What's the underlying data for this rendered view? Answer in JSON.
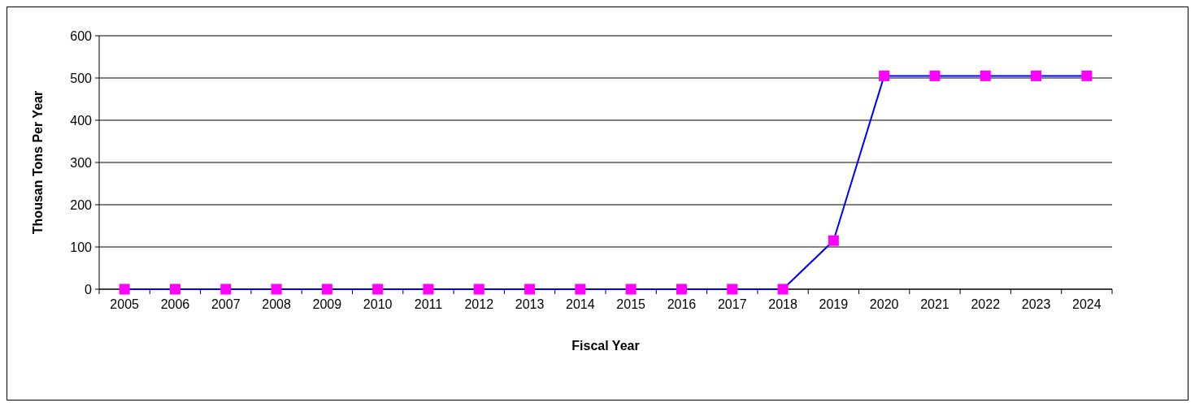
{
  "chart_data": {
    "type": "line",
    "xlabel": "Fiscal Year",
    "ylabel": "Thousan Tons Per Year",
    "categories": [
      "2005",
      "2006",
      "2007",
      "2008",
      "2009",
      "2010",
      "2011",
      "2012",
      "2013",
      "2014",
      "2015",
      "2016",
      "2017",
      "2018",
      "2019",
      "2020",
      "2021",
      "2022",
      "2023",
      "2024"
    ],
    "series": [
      {
        "color": "#0000ff",
        "colors": [
          "#ff00ff",
          "#ff00ff",
          "#ff00ff",
          "#ff00ff",
          "#ff00ff",
          "#ff00ff",
          "#ff00ff",
          "#ff00ff",
          "#ff00ff",
          "#ff00ff",
          "#ff00ff",
          "#ff00ff",
          "#ff00ff",
          "#ff00ff",
          "#ff00ff",
          "#ff00ff",
          "#ff00ff",
          "#ff00ff",
          "#ff00ff",
          "#ff00ff"
        ],
        "values": [
          0,
          0,
          0,
          0,
          0,
          0,
          0,
          0,
          0,
          0,
          0,
          0,
          0,
          0,
          115,
          505,
          505,
          505,
          505,
          505
        ]
      }
    ],
    "marker": "square",
    "ylim": [
      0,
      600
    ],
    "yticks": [
      0,
      100,
      200,
      300,
      400,
      500,
      600
    ],
    "grid": "y"
  }
}
